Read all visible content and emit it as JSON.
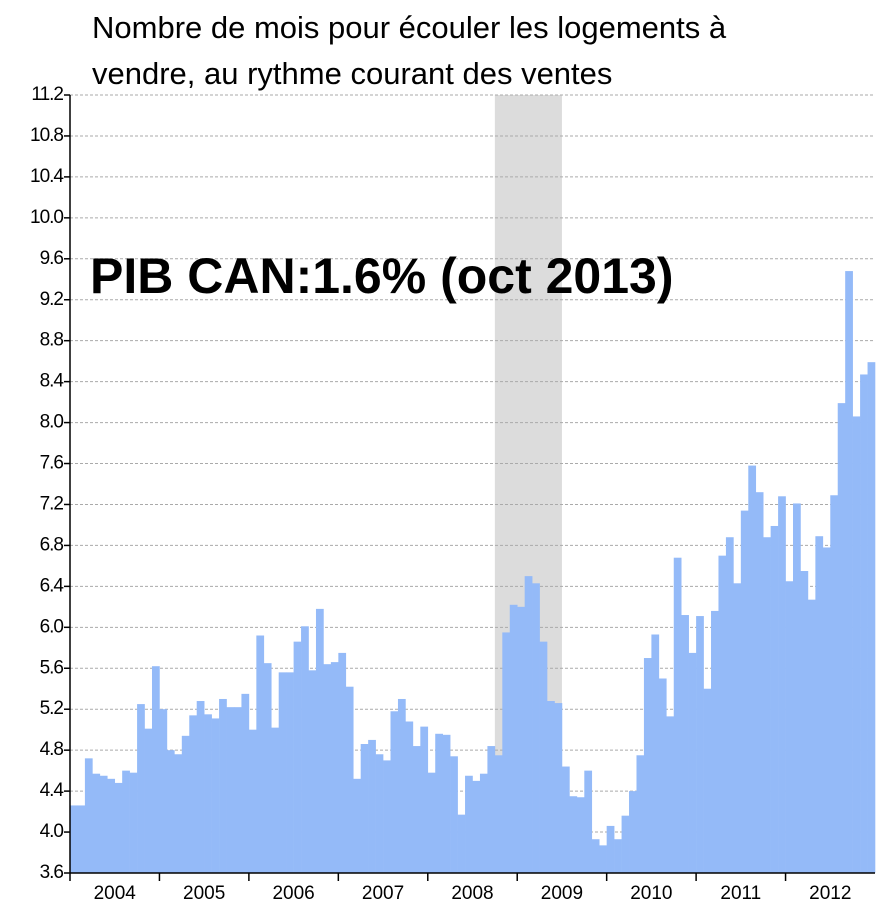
{
  "chart_data": {
    "type": "bar",
    "title_lines": [
      "Nombre de mois pour écouler les logements à",
      "vendre, au rythme courant des ventes"
    ],
    "annotation": "PIB CAN:1.6% (oct 2013)",
    "color": "#94baf8",
    "shade_color": "#dcdcdc",
    "shade_range": [
      57,
      65
    ],
    "grid": true,
    "ylim": [
      3.6,
      11.2
    ],
    "yticks": [
      3.6,
      {
        "value": 4.0,
        "label": "4.0"
      },
      4.4,
      4.8,
      5.2,
      5.6,
      {
        "value": 6.0,
        "label": "6.0"
      },
      6.4,
      6.8,
      7.2,
      7.6,
      {
        "value": 8.0,
        "label": "8.0"
      },
      8.4,
      8.8,
      9.2,
      9.6,
      {
        "value": 10.0,
        "label": "10.0"
      },
      10.4,
      10.8,
      11.2
    ],
    "year_labels": [
      "2004",
      "2005",
      "2006",
      "2007",
      "2008",
      "2009",
      "2010",
      "2011",
      "2012"
    ],
    "categories": [
      null,
      null,
      null,
      null,
      null,
      null,
      null,
      null,
      null,
      null,
      null,
      null,
      null,
      null,
      null,
      null,
      null,
      null,
      null,
      null,
      null,
      null,
      null,
      null,
      null,
      null,
      null,
      null,
      null,
      null,
      null,
      null,
      null,
      null,
      null,
      null,
      null,
      null,
      null,
      null,
      null,
      null,
      null,
      null,
      null,
      null,
      null,
      null,
      null,
      null,
      null,
      null,
      null,
      null,
      null,
      null,
      null,
      null,
      null,
      null,
      null,
      null,
      null,
      null,
      null,
      null,
      null,
      null,
      null,
      null,
      null,
      null,
      null,
      null,
      null,
      null,
      null,
      null,
      null,
      null,
      null,
      null,
      null,
      null,
      null,
      null,
      null,
      null,
      null,
      null,
      null,
      null,
      null,
      null,
      null,
      null,
      null,
      null,
      null,
      null,
      null,
      null,
      null,
      null,
      null,
      null,
      null,
      null
    ],
    "values": [
      4.26,
      4.26,
      4.72,
      4.57,
      4.55,
      4.52,
      4.48,
      4.6,
      4.58,
      5.25,
      5.01,
      5.62,
      5.2,
      4.8,
      4.76,
      4.94,
      5.14,
      5.28,
      5.15,
      5.11,
      5.3,
      5.22,
      5.22,
      5.35,
      5.0,
      5.92,
      5.65,
      5.02,
      5.56,
      5.56,
      5.86,
      6.01,
      5.58,
      6.18,
      5.64,
      5.66,
      5.75,
      5.42,
      4.52,
      4.86,
      4.9,
      4.76,
      4.7,
      5.18,
      5.3,
      5.08,
      4.84,
      5.03,
      4.58,
      4.96,
      4.95,
      4.74,
      4.17,
      4.55,
      4.5,
      4.57,
      4.84,
      4.75,
      5.95,
      6.22,
      6.2,
      6.5,
      6.43,
      5.86,
      5.28,
      5.26,
      4.64,
      4.35,
      4.34,
      4.6,
      3.93,
      3.87,
      4.06,
      3.93,
      4.16,
      4.4,
      4.75,
      5.7,
      5.93,
      5.5,
      5.13,
      6.68,
      6.12,
      5.75,
      6.11,
      5.4,
      6.16,
      6.7,
      6.88,
      6.43,
      7.14,
      7.58,
      7.32,
      6.88,
      6.99,
      7.28,
      6.45,
      7.21,
      6.55,
      6.27,
      6.89,
      6.78,
      7.29,
      8.19,
      9.48,
      8.06,
      8.47,
      8.59
    ]
  }
}
